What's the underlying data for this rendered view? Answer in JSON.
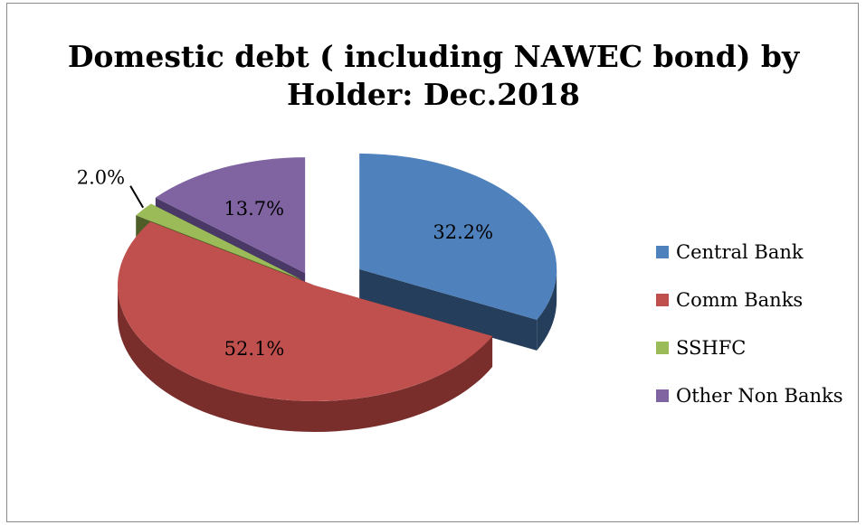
{
  "chart_data": {
    "type": "pie",
    "title": "Domestic debt ( including NAWEC bond) by Holder: Dec.2018",
    "title_lines": [
      "Domestic debt ( including NAWEC bond) by",
      "Holder: Dec.2018"
    ],
    "style": "3d-exploded",
    "legend_position": "right",
    "slices": [
      {
        "name": "Central Bank",
        "value": 32.2,
        "label": "32.2%",
        "color": "#4f81bd",
        "side_color": "#253e5c"
      },
      {
        "name": "Comm Banks",
        "value": 52.1,
        "label": "52.1%",
        "color": "#c0504d",
        "side_color": "#7a2e2c"
      },
      {
        "name": "SSHFC",
        "value": 2.0,
        "label": "2.0%",
        "color": "#9bbb59",
        "side_color": "#4f5e29"
      },
      {
        "name": "Other Non Banks",
        "value": 13.7,
        "label": "13.7%",
        "color": "#8064a2",
        "side_color": "#4a3866"
      }
    ]
  }
}
